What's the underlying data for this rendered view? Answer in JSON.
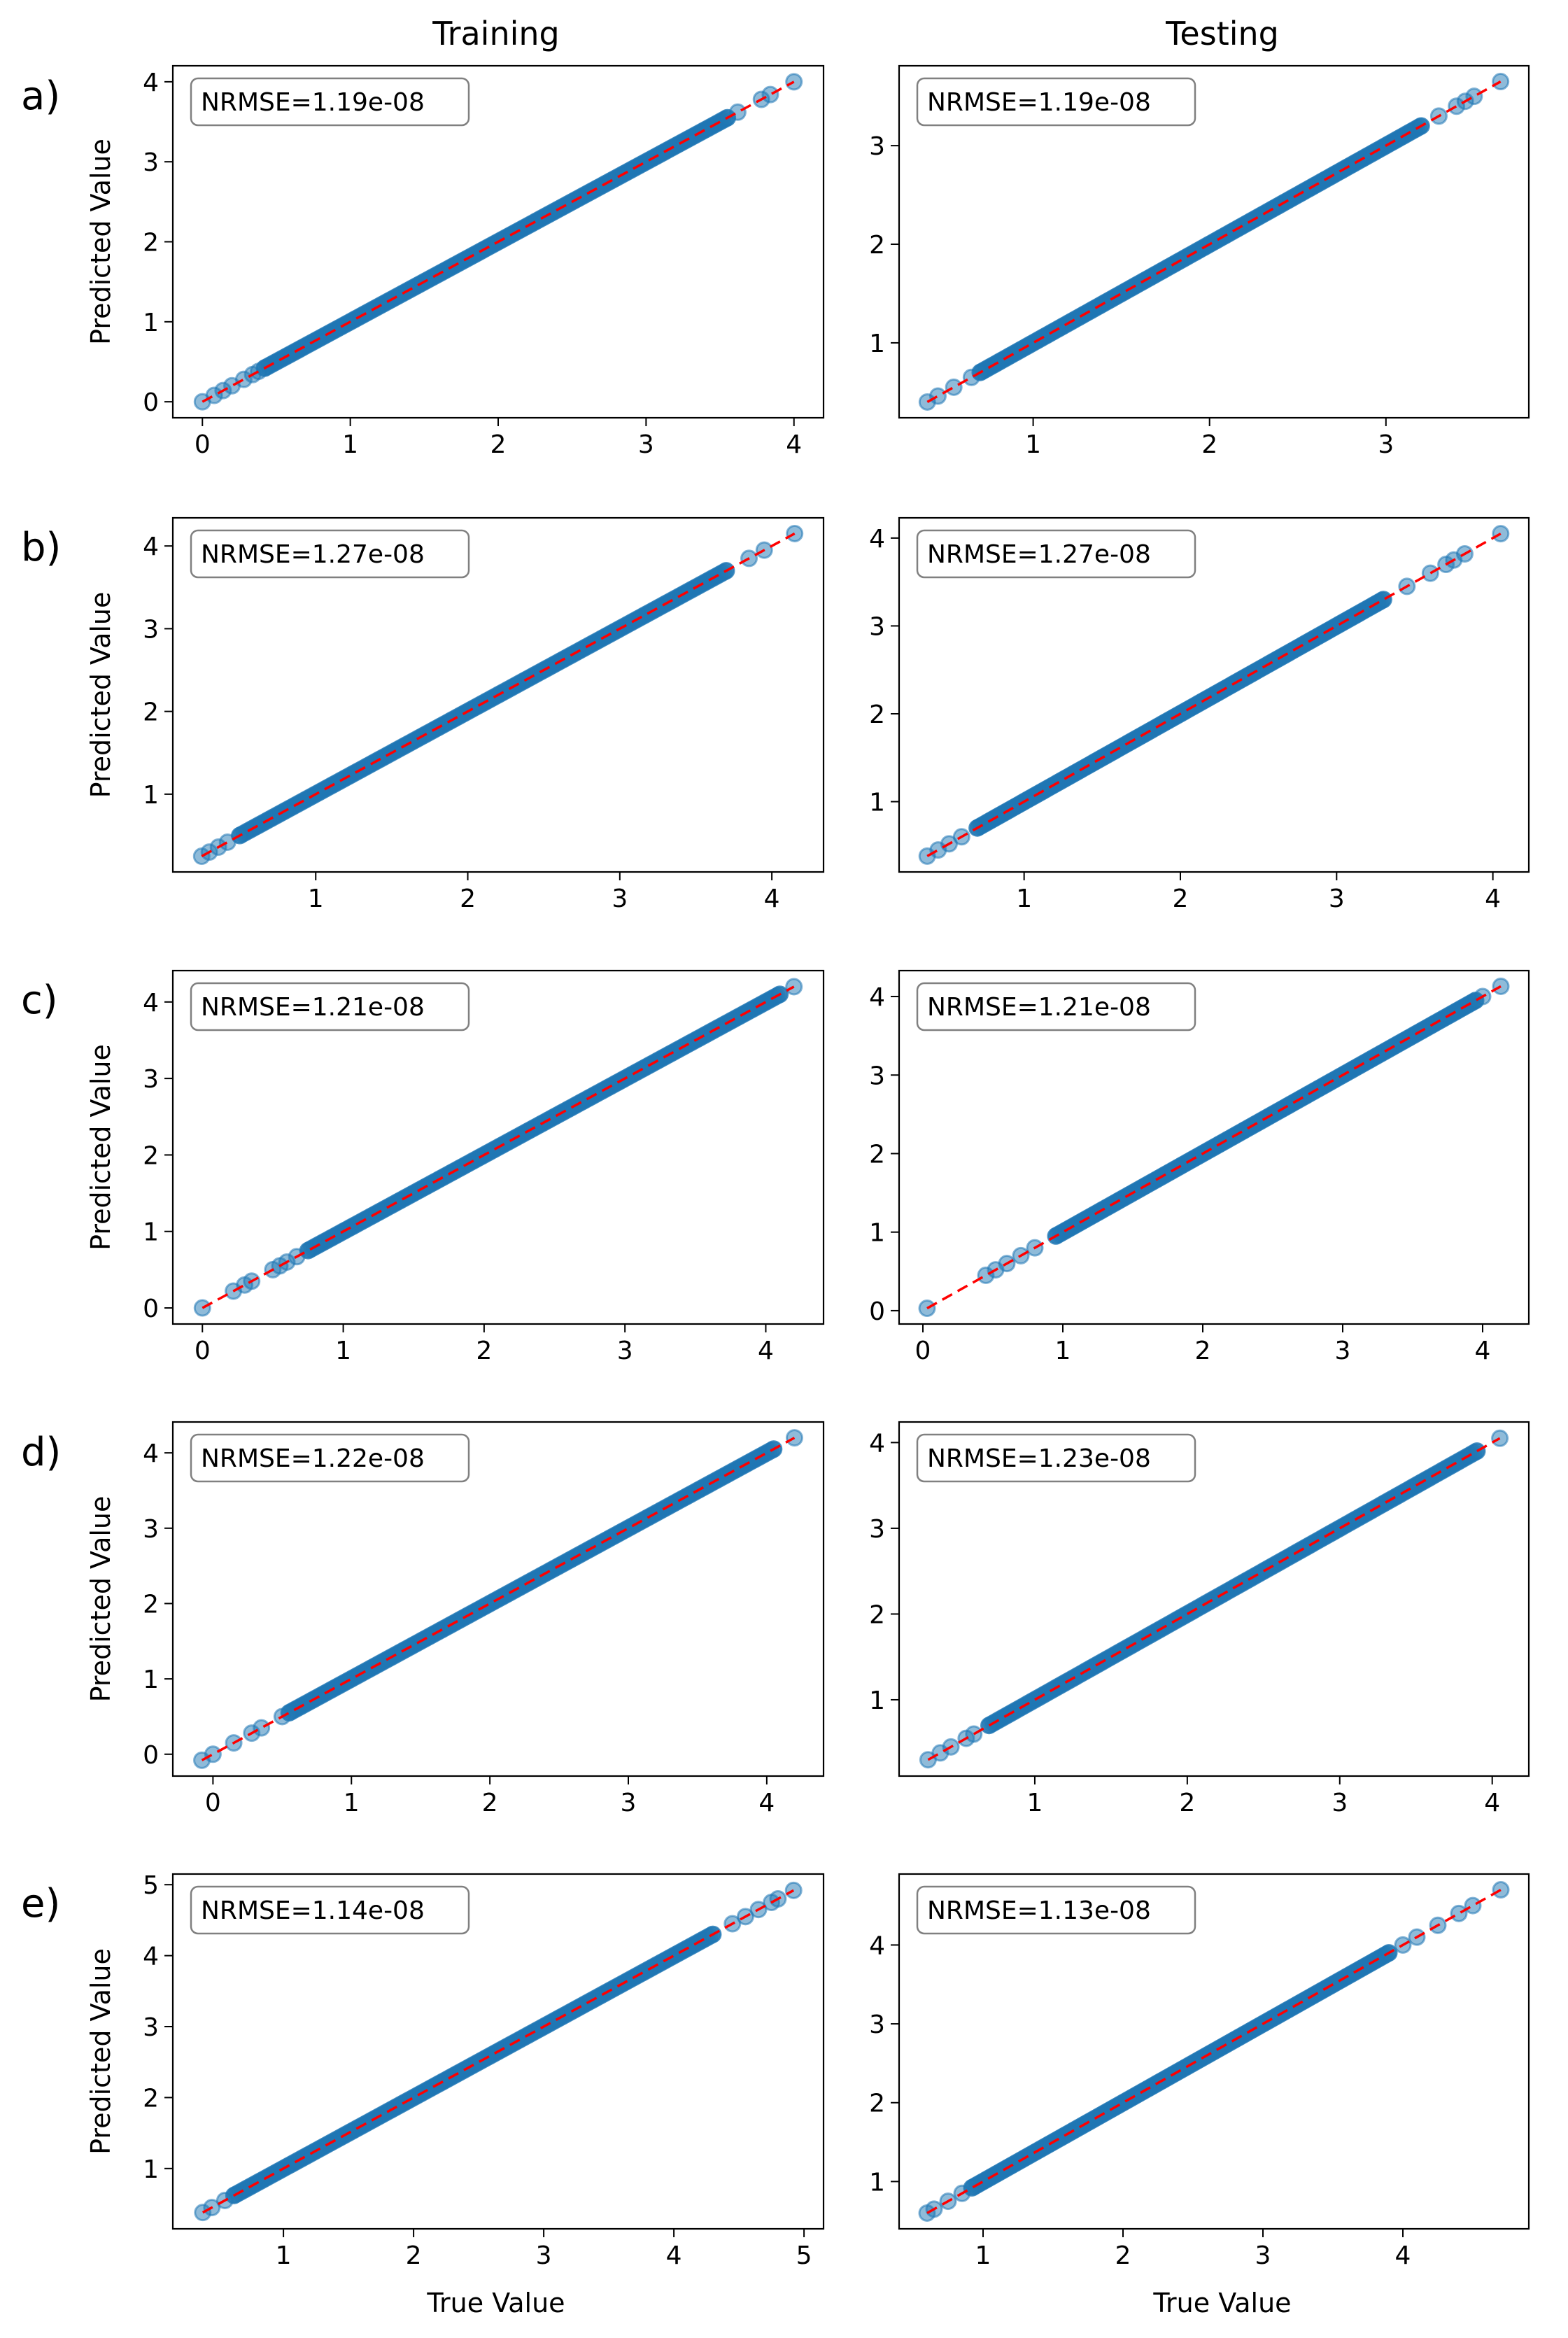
{
  "figure": {
    "column_titles": [
      "Training",
      "Testing"
    ],
    "xlabel": "True Value",
    "ylabel": "Predicted Value"
  },
  "chart_data": [
    {
      "type": "scatter",
      "panel": "a)",
      "column": "Training",
      "metric": "NRMSE=1.19e-08",
      "range": [
        0,
        4.0
      ],
      "xlim": [
        -0.2,
        4.2
      ],
      "ylim": [
        -0.2,
        4.2
      ],
      "xticks": [
        0,
        1,
        2,
        3,
        4
      ],
      "yticks": [
        0,
        1,
        2,
        3,
        4
      ],
      "reference_line": "y = x",
      "sparse_points": [
        0,
        0.08,
        0.14,
        0.2,
        0.28,
        0.34,
        0.38,
        0.42,
        3.55,
        3.62,
        3.78,
        3.84,
        4.0
      ]
    },
    {
      "type": "scatter",
      "panel": "a)",
      "column": "Testing",
      "metric": "NRMSE=1.19e-08",
      "range": [
        0.4,
        3.65
      ],
      "xlim": [
        0.24,
        3.81
      ],
      "ylim": [
        0.24,
        3.81
      ],
      "xticks": [
        1,
        2,
        3
      ],
      "yticks": [
        1,
        2,
        3
      ],
      "reference_line": "y = x",
      "sparse_points": [
        0.4,
        0.46,
        0.55,
        0.65,
        0.7,
        3.2,
        3.3,
        3.4,
        3.45,
        3.5,
        3.65
      ]
    },
    {
      "type": "scatter",
      "panel": "b)",
      "column": "Training",
      "metric": "NRMSE=1.27e-08",
      "range": [
        0.25,
        4.15
      ],
      "xlim": [
        0.06,
        4.34
      ],
      "ylim": [
        0.06,
        4.34
      ],
      "xticks": [
        1,
        2,
        3,
        4
      ],
      "yticks": [
        1,
        2,
        3,
        4
      ],
      "reference_line": "y = x",
      "sparse_points": [
        0.25,
        0.3,
        0.36,
        0.42,
        0.5,
        3.7,
        3.85,
        3.95,
        4.15
      ]
    },
    {
      "type": "scatter",
      "panel": "b)",
      "column": "Testing",
      "metric": "NRMSE=1.27e-08",
      "range": [
        0.38,
        4.05
      ],
      "xlim": [
        0.2,
        4.23
      ],
      "ylim": [
        0.2,
        4.23
      ],
      "xticks": [
        1,
        2,
        3,
        4
      ],
      "yticks": [
        1,
        2,
        3,
        4
      ],
      "reference_line": "y = x",
      "sparse_points": [
        0.38,
        0.45,
        0.52,
        0.6,
        0.7,
        3.3,
        3.45,
        3.6,
        3.7,
        3.75,
        3.82,
        4.05
      ]
    },
    {
      "type": "scatter",
      "panel": "c)",
      "column": "Training",
      "metric": "NRMSE=1.21e-08",
      "range": [
        0,
        4.2
      ],
      "xlim": [
        -0.21,
        4.41
      ],
      "ylim": [
        -0.21,
        4.41
      ],
      "xticks": [
        0,
        1,
        2,
        3,
        4
      ],
      "yticks": [
        0,
        1,
        2,
        3,
        4
      ],
      "reference_line": "y = x",
      "sparse_points": [
        0,
        0.22,
        0.3,
        0.35,
        0.5,
        0.55,
        0.6,
        0.67,
        0.75,
        4.1,
        4.2
      ]
    },
    {
      "type": "scatter",
      "panel": "c)",
      "column": "Testing",
      "metric": "NRMSE=1.21e-08",
      "range": [
        0.03,
        4.13
      ],
      "xlim": [
        -0.17,
        4.33
      ],
      "ylim": [
        -0.17,
        4.33
      ],
      "xticks": [
        0,
        1,
        2,
        3,
        4
      ],
      "yticks": [
        0,
        1,
        2,
        3,
        4
      ],
      "reference_line": "y = x",
      "sparse_points": [
        0.03,
        0.45,
        0.52,
        0.6,
        0.7,
        0.8,
        0.95,
        3.95,
        4.0,
        4.13
      ]
    },
    {
      "type": "scatter",
      "panel": "d)",
      "column": "Training",
      "metric": "NRMSE=1.22e-08",
      "range": [
        -0.08,
        4.2
      ],
      "xlim": [
        -0.29,
        4.41
      ],
      "ylim": [
        -0.29,
        4.41
      ],
      "xticks": [
        0,
        1,
        2,
        3,
        4
      ],
      "yticks": [
        0,
        1,
        2,
        3,
        4
      ],
      "reference_line": "y = x",
      "sparse_points": [
        -0.08,
        0.0,
        0.15,
        0.28,
        0.35,
        0.5,
        0.55,
        4.05,
        4.2
      ]
    },
    {
      "type": "scatter",
      "panel": "d)",
      "column": "Testing",
      "metric": "NRMSE=1.23e-08",
      "range": [
        0.3,
        4.05
      ],
      "xlim": [
        0.11,
        4.24
      ],
      "ylim": [
        0.11,
        4.24
      ],
      "xticks": [
        1,
        2,
        3,
        4
      ],
      "yticks": [
        1,
        2,
        3,
        4
      ],
      "reference_line": "y = x",
      "sparse_points": [
        0.3,
        0.38,
        0.45,
        0.55,
        0.6,
        0.7,
        3.9,
        4.05
      ]
    },
    {
      "type": "scatter",
      "panel": "e)",
      "column": "Training",
      "metric": "NRMSE=1.14e-08",
      "range": [
        0.38,
        4.92
      ],
      "xlim": [
        0.15,
        5.15
      ],
      "ylim": [
        0.15,
        5.15
      ],
      "xticks": [
        1,
        2,
        3,
        4,
        5
      ],
      "yticks": [
        1,
        2,
        3,
        4,
        5
      ],
      "reference_line": "y = x",
      "sparse_points": [
        0.38,
        0.45,
        0.55,
        0.62,
        4.3,
        4.45,
        4.55,
        4.65,
        4.75,
        4.8,
        4.92
      ]
    },
    {
      "type": "scatter",
      "panel": "e)",
      "column": "Testing",
      "metric": "NRMSE=1.13e-08",
      "range": [
        0.6,
        4.7
      ],
      "xlim": [
        0.4,
        4.9
      ],
      "ylim": [
        0.4,
        4.9
      ],
      "xticks": [
        1,
        2,
        3,
        4
      ],
      "yticks": [
        1,
        2,
        3,
        4
      ],
      "reference_line": "y = x",
      "sparse_points": [
        0.6,
        0.65,
        0.75,
        0.85,
        0.92,
        3.9,
        4.0,
        4.1,
        4.25,
        4.4,
        4.5,
        4.7
      ]
    }
  ]
}
